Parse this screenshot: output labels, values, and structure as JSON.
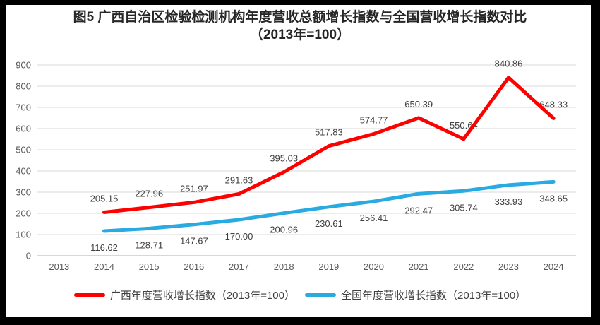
{
  "title": "图5  广西自治区检验检测机构年度营收总额增长指数与全国营收增长指数对比（2013年=100）",
  "chart_data": {
    "type": "line",
    "categories": [
      "2013",
      "2014",
      "2015",
      "2016",
      "2017",
      "2018",
      "2019",
      "2020",
      "2021",
      "2022",
      "2023",
      "2024"
    ],
    "series": [
      {
        "name": "广西年度营收增长指数（2013年=100）",
        "color": "#FE0000",
        "label_position": "above",
        "values": [
          null,
          205.15,
          227.96,
          251.97,
          291.63,
          395.03,
          517.83,
          574.77,
          650.39,
          550.64,
          840.86,
          648.33
        ],
        "labels": [
          "",
          "205.15",
          "227.96",
          "251.97",
          "291.63",
          "395.03",
          "517.83",
          "574.77",
          "650.39",
          "550.64",
          "840.86",
          "648.33"
        ]
      },
      {
        "name": "全国年度营收增长指数（2013年=100）",
        "color": "#29ABE2",
        "label_position": "below",
        "values": [
          null,
          116.62,
          128.71,
          147.67,
          170.0,
          200.96,
          230.61,
          256.41,
          292.47,
          305.74,
          333.93,
          348.65
        ],
        "labels": [
          "",
          "116.62",
          "128.71",
          "147.67",
          "170.00",
          "200.96",
          "230.61",
          "256.41",
          "292.47",
          "305.74",
          "333.93",
          "348.65"
        ]
      }
    ],
    "ylim": [
      0,
      900
    ],
    "y_ticks": [
      "0",
      "100",
      "200",
      "300",
      "400",
      "500",
      "600",
      "700",
      "800",
      "900"
    ],
    "grid": true,
    "legend_position": "bottom",
    "colors": {
      "grid": "#D9D9D9",
      "axis_line": "#BFBFBF",
      "tick_text": "#595959",
      "label_text": "#404040",
      "title_text": "#262626",
      "frame": "#000000",
      "background": "#FFFFFF"
    }
  }
}
